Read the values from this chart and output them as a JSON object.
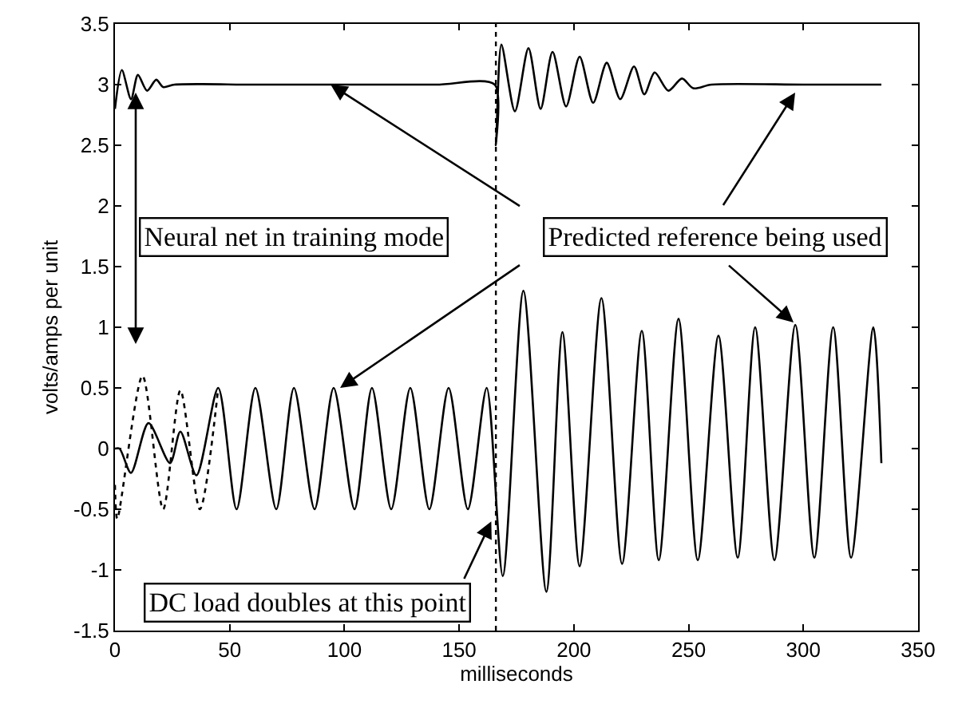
{
  "chart_data": {
    "type": "line",
    "xlabel": "milliseconds",
    "ylabel": "volts/amps per unit",
    "xlim": [
      0,
      350
    ],
    "xticks": [
      0,
      50,
      100,
      150,
      200,
      250,
      300,
      350
    ],
    "ylim": [
      -1.5,
      3.5
    ],
    "yticks": [
      -1.5,
      -1,
      -0.5,
      0,
      0.5,
      1,
      1.5,
      2,
      2.5,
      3,
      3.5
    ],
    "marker": "none",
    "series": [
      {
        "color": "#000000",
        "line_style": "solid",
        "x": [
          0,
          3,
          7,
          10,
          14,
          18,
          21,
          26,
          60,
          100,
          140,
          165.5,
          166,
          168.4,
          174.3,
          180.2,
          185.5,
          190.7,
          196.6,
          202.5,
          208.4,
          214.3,
          220.2,
          226.2,
          230.7,
          235.2,
          241.2,
          247.1,
          252,
          260,
          300,
          334
        ],
        "values": [
          2.8,
          3.12,
          2.88,
          3.08,
          2.95,
          3.04,
          2.98,
          3,
          3,
          3,
          3,
          3,
          2.5,
          3.33,
          2.78,
          3.3,
          2.8,
          3.27,
          2.82,
          3.23,
          2.85,
          3.18,
          2.88,
          3.15,
          2.92,
          3.1,
          2.95,
          3.05,
          2.97,
          3,
          3,
          3
        ]
      },
      {
        "color": "#000000",
        "line_style": "solid",
        "x": [
          0,
          2,
          7,
          14.6,
          24,
          28.5,
          35.5,
          45,
          53,
          61.2,
          70.3,
          78,
          87,
          95.3,
          104.4,
          112,
          120.4,
          128.7,
          137,
          145.4,
          153.8,
          162,
          169,
          178,
          188,
          195,
          202.5,
          212,
          221,
          229.6,
          237,
          245.6,
          254,
          263,
          271.4,
          279,
          287.4,
          296.5,
          304.8,
          313,
          320.8,
          330.5,
          334
        ],
        "values": [
          0,
          0,
          -0.2,
          0.21,
          -0.12,
          0.14,
          -0.22,
          0.5,
          -0.5,
          0.5,
          -0.5,
          0.5,
          -0.5,
          0.5,
          -0.5,
          0.5,
          -0.5,
          0.5,
          -0.5,
          0.5,
          -0.5,
          0.5,
          -1.05,
          1.3,
          -1.18,
          0.96,
          -0.97,
          1.24,
          -0.95,
          0.97,
          -0.92,
          1.07,
          -0.92,
          0.93,
          -0.9,
          1,
          -0.92,
          1.02,
          -0.9,
          1,
          -0.9,
          1,
          -0.12
        ]
      },
      {
        "color": "#000000",
        "line_style": "dotted",
        "x": [
          0,
          1,
          12,
          21,
          28.5,
          37,
          45
        ],
        "values": [
          -0.3,
          -0.58,
          0.6,
          -0.5,
          0.48,
          -0.5,
          0.5
        ]
      }
    ],
    "ref_lines": [
      {
        "axis": "x",
        "value": 166,
        "line_style": "dotted",
        "color": "#000000"
      }
    ],
    "annotations": [
      "Neural net in training mode",
      {
        "text": "Predicted reference being used",
        "x": 94,
        "y": 3
      },
      {
        "text": "DC load doubles at this point",
        "x": 164,
        "y": -0.6
      }
    ]
  }
}
